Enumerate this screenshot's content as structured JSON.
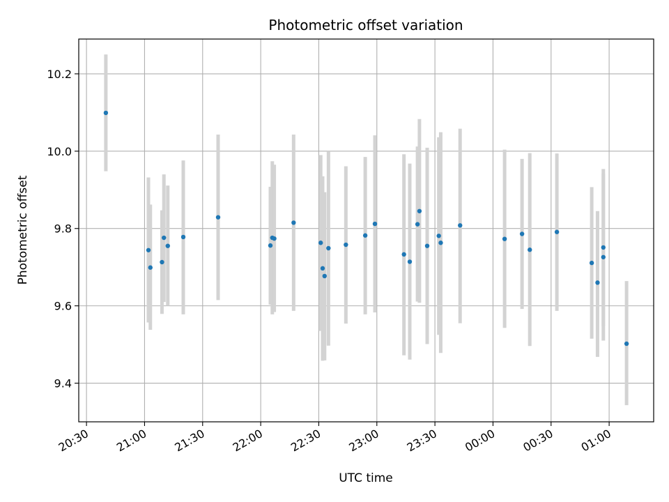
{
  "chart_data": {
    "type": "scatter",
    "title": "Photometric offset variation",
    "xlabel": "UTC time",
    "ylabel": "Photometric offset",
    "x_axis": "time",
    "xlim": [
      "20:26",
      "01:23"
    ],
    "ylim": [
      9.3,
      10.29
    ],
    "x_ticks": [
      "20:30",
      "21:00",
      "21:30",
      "22:00",
      "22:30",
      "23:00",
      "23:30",
      "00:00",
      "00:30",
      "01:00"
    ],
    "y_ticks": [
      9.4,
      9.6,
      9.8,
      10.0,
      10.2
    ],
    "grid": true,
    "legend": "none",
    "colors": {
      "point": "#1f77b4",
      "error_bar": "#d3d3d3",
      "grid": "#b0b0b0"
    },
    "points": [
      {
        "t": "20:40",
        "y": 10.099,
        "lo": 9.948,
        "hi": 10.25
      },
      {
        "t": "21:02",
        "y": 9.744,
        "lo": 9.557,
        "hi": 9.932
      },
      {
        "t": "21:03",
        "y": 9.699,
        "lo": 9.538,
        "hi": 9.862
      },
      {
        "t": "21:09",
        "y": 9.713,
        "lo": 9.579,
        "hi": 9.847
      },
      {
        "t": "21:10",
        "y": 9.776,
        "lo": 9.61,
        "hi": 9.94
      },
      {
        "t": "21:12",
        "y": 9.755,
        "lo": 9.6,
        "hi": 9.911
      },
      {
        "t": "21:20",
        "y": 9.778,
        "lo": 9.578,
        "hi": 9.976
      },
      {
        "t": "21:38",
        "y": 9.829,
        "lo": 9.615,
        "hi": 10.043
      },
      {
        "t": "22:05",
        "y": 9.756,
        "lo": 9.603,
        "hi": 9.908
      },
      {
        "t": "22:06",
        "y": 9.776,
        "lo": 9.578,
        "hi": 9.974
      },
      {
        "t": "22:07",
        "y": 9.774,
        "lo": 9.584,
        "hi": 9.965
      },
      {
        "t": "22:17",
        "y": 9.815,
        "lo": 9.587,
        "hi": 10.043
      },
      {
        "t": "22:31",
        "y": 9.763,
        "lo": 9.535,
        "hi": 9.99
      },
      {
        "t": "22:32",
        "y": 9.697,
        "lo": 9.458,
        "hi": 9.935
      },
      {
        "t": "22:33",
        "y": 9.677,
        "lo": 9.459,
        "hi": 9.894
      },
      {
        "t": "22:35",
        "y": 9.749,
        "lo": 9.497,
        "hi": 10.0
      },
      {
        "t": "22:44",
        "y": 9.758,
        "lo": 9.554,
        "hi": 9.961
      },
      {
        "t": "22:54",
        "y": 9.782,
        "lo": 9.578,
        "hi": 9.985
      },
      {
        "t": "22:59",
        "y": 9.812,
        "lo": 9.583,
        "hi": 10.041
      },
      {
        "t": "23:14",
        "y": 9.733,
        "lo": 9.472,
        "hi": 9.992
      },
      {
        "t": "23:17",
        "y": 9.714,
        "lo": 9.461,
        "hi": 9.968
      },
      {
        "t": "23:21",
        "y": 9.811,
        "lo": 9.611,
        "hi": 10.012
      },
      {
        "t": "23:22",
        "y": 9.845,
        "lo": 9.608,
        "hi": 10.083
      },
      {
        "t": "23:26",
        "y": 9.755,
        "lo": 9.501,
        "hi": 10.009
      },
      {
        "t": "23:32",
        "y": 9.781,
        "lo": 9.525,
        "hi": 10.036
      },
      {
        "t": "23:33",
        "y": 9.763,
        "lo": 9.478,
        "hi": 10.049
      },
      {
        "t": "23:43",
        "y": 9.808,
        "lo": 9.555,
        "hi": 10.058
      },
      {
        "t": "00:06",
        "y": 9.773,
        "lo": 9.543,
        "hi": 10.004
      },
      {
        "t": "00:15",
        "y": 9.786,
        "lo": 9.592,
        "hi": 9.98
      },
      {
        "t": "00:19",
        "y": 9.745,
        "lo": 9.496,
        "hi": 9.995
      },
      {
        "t": "00:33",
        "y": 9.791,
        "lo": 9.587,
        "hi": 9.994
      },
      {
        "t": "00:51",
        "y": 9.711,
        "lo": 9.515,
        "hi": 9.907
      },
      {
        "t": "00:54",
        "y": 9.66,
        "lo": 9.468,
        "hi": 9.845
      },
      {
        "t": "00:57",
        "y": 9.751,
        "lo": 9.547,
        "hi": 9.954
      },
      {
        "t": "00:57",
        "y": 9.726,
        "lo": 9.51,
        "hi": 9.942
      },
      {
        "t": "01:09",
        "y": 9.502,
        "lo": 9.343,
        "hi": 9.664
      }
    ]
  }
}
